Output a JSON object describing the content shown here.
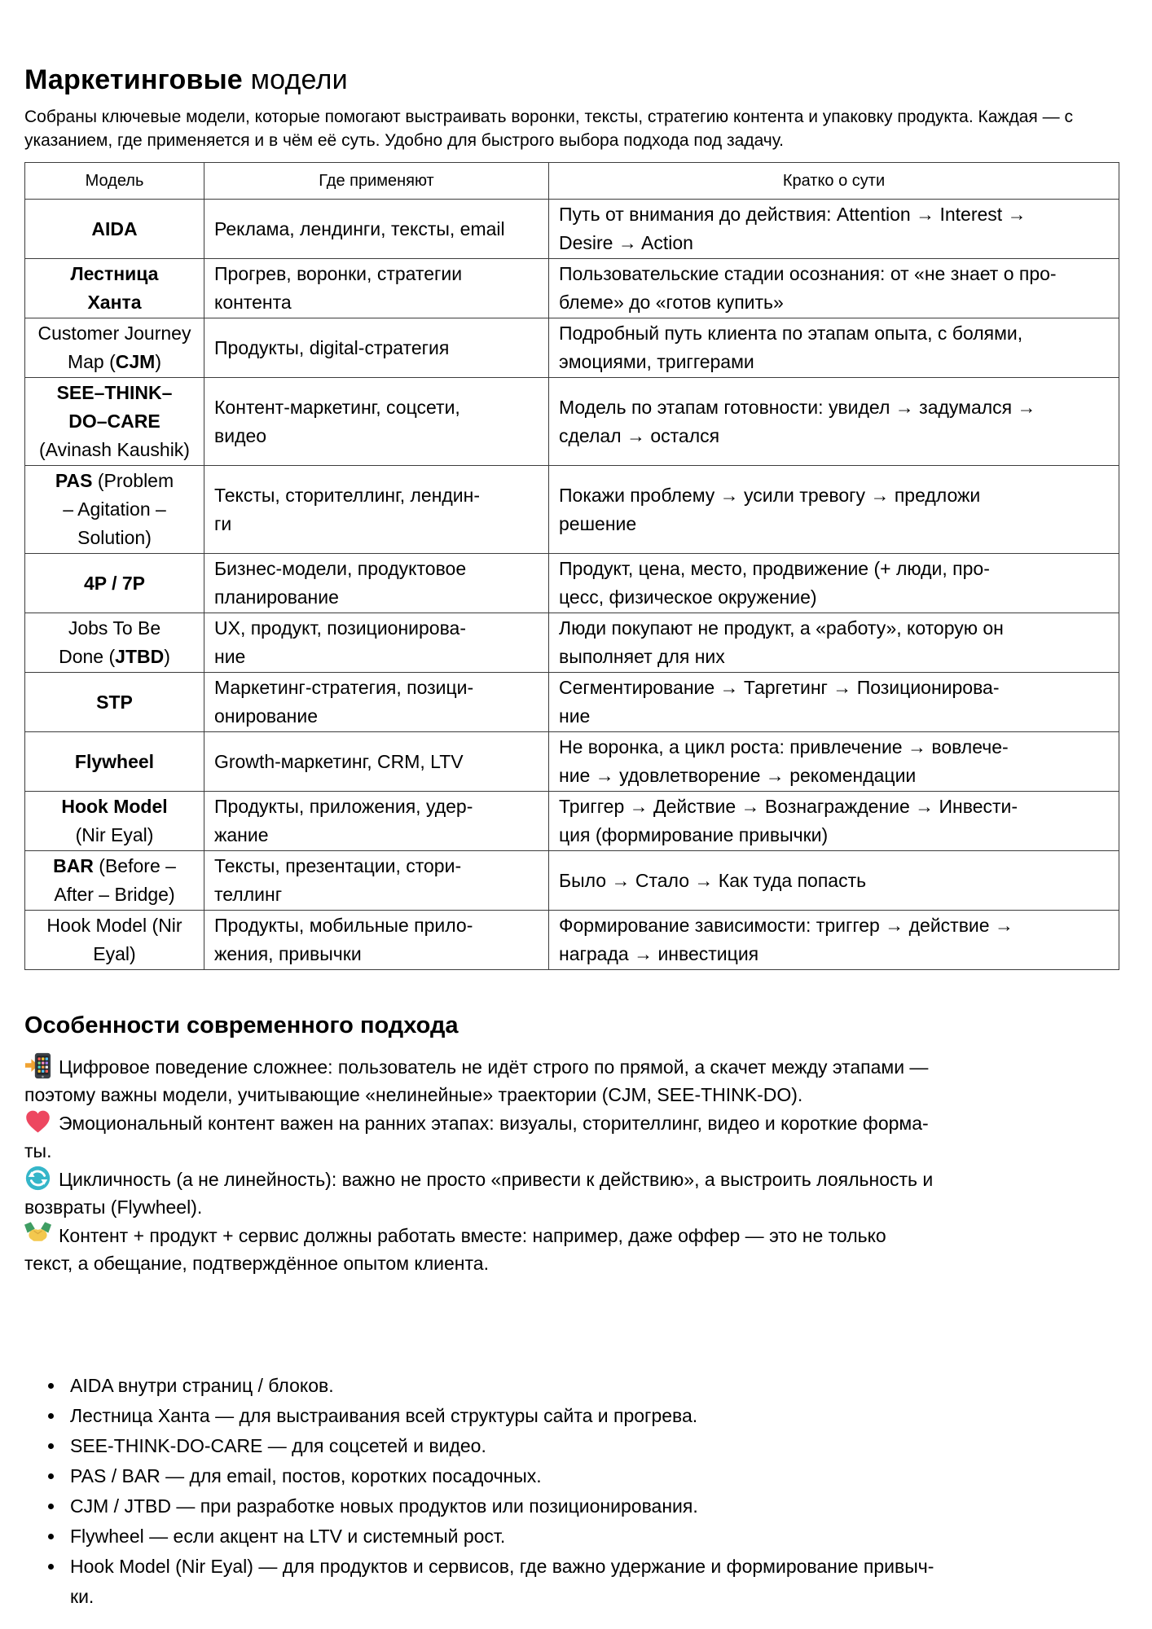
{
  "header": {
    "title_bold": "Маркетинговые",
    "title_regular": " модели",
    "intro": "Собраны ключевые модели, которые помогают выстраивать воронки, тексты, стратегию контента и упаковку продукта. Каждая — с\nуказанием, где применяется и в чём её суть. Удобно для быстрого выбора подхода под задачу."
  },
  "table": {
    "columns": [
      "Модель",
      "Где применяют",
      "Кратко о сути"
    ],
    "rows": [
      {
        "model": [
          {
            "t": "AIDA",
            "b": true
          }
        ],
        "where": "Реклама, лендинги, тексты, email",
        "essence": "Путь от внимания до действия: Attention → Interest →\nDesire → Action"
      },
      {
        "model": [
          {
            "t": "Лестница\nХанта",
            "b": true
          }
        ],
        "where": "Прогрев, воронки, стратегии\nконтента",
        "essence": "Пользовательские стадии осознания: от «не знает о про-\nблеме» до «готов купить»"
      },
      {
        "model": [
          {
            "t": "Customer Journey\nMap (",
            "b": false
          },
          {
            "t": "CJM",
            "b": true
          },
          {
            "t": ")",
            "b": false
          }
        ],
        "where": "Продукты, digital-стратегия",
        "essence": "Подробный путь клиента по этапам опыта, с болями,\nэмоциями, триггерами"
      },
      {
        "model": [
          {
            "t": "SEE–THINK–\nDO–CARE",
            "b": true
          },
          {
            "t": "\n(Avinash Kaushik)",
            "b": false
          }
        ],
        "where": "Контент-маркетинг, соцсети,\nвидео",
        "essence": "Модель по этапам готовности: увидел → задумался →\nсделал → остался"
      },
      {
        "model": [
          {
            "t": "PAS",
            "b": true
          },
          {
            "t": " (Problem\n– Agitation –\nSolution)",
            "b": false
          }
        ],
        "where": "Тексты, сторителлинг, лендин-\nги",
        "essence": "Покажи проблему → усили тревогу → предложи\nрешение"
      },
      {
        "model": [
          {
            "t": "4P / 7P",
            "b": true
          }
        ],
        "where": "Бизнес-модели, продуктовое\nпланирование",
        "essence": "Продукт, цена, место, продвижение (+ люди, про-\nцесс, физическое окружение)"
      },
      {
        "model": [
          {
            "t": "Jobs To Be\nDone (",
            "b": false
          },
          {
            "t": "JTBD",
            "b": true
          },
          {
            "t": ")",
            "b": false
          }
        ],
        "where": "UX, продукт, позиционирова-\nние",
        "essence": "Люди покупают не продукт, а «работу», которую он\nвыполняет для них"
      },
      {
        "model": [
          {
            "t": "STP",
            "b": true
          }
        ],
        "where": "Маркетинг-стратегия, позици-\nонирование",
        "essence": "Сегментирование → Таргетинг → Позиционирова-\nние"
      },
      {
        "model": [
          {
            "t": "Flywheel",
            "b": true
          }
        ],
        "where": "Growth-маркетинг, CRM, LTV",
        "essence": "Не воронка, а цикл роста: привлечение → вовлече-\nние → удовлетворение → рекомендации"
      },
      {
        "model": [
          {
            "t": "Hook Model",
            "b": true
          },
          {
            "t": "\n(Nir Eyal)",
            "b": false
          }
        ],
        "where": "Продукты, приложения, удер-\nжание",
        "essence": "Триггер → Действие → Вознаграждение → Инвести-\nция (формирование привычки)"
      },
      {
        "model": [
          {
            "t": "BAR",
            "b": true
          },
          {
            "t": " (Before –\nAfter – Bridge)",
            "b": false
          }
        ],
        "where": "Тексты, презентации, стори-\nтеллинг",
        "essence": "Было → Стало → Как туда попасть"
      },
      {
        "model": [
          {
            "t": "Hook Model (Nir\nEyal)",
            "b": false
          }
        ],
        "where": "Продукты, мобильные прило-\nжения, привычки",
        "essence": "Формирование зависимости: триггер → действие →\nнаграда → инвестиция"
      }
    ]
  },
  "features": {
    "heading": "Особенности современного подхода",
    "items": [
      {
        "icon": "phone-arrow",
        "text": "Цифровое поведение сложнее: пользователь не идёт строго по прямой, а скачет между этапами —\nпоэтому важны модели, учитывающие «нелинейные» траектории (CJM, SEE-THINK-DO)."
      },
      {
        "icon": "heart",
        "text": "Эмоциональный контент важен на ранних этапах: визуалы, сторителлинг, видео и короткие форма-\nты."
      },
      {
        "icon": "cycle",
        "text": "Цикличность (а не линейность): важно не просто «привести к действию», а выстроить лояльность и\nвозвраты (Flywheel)."
      },
      {
        "icon": "handshake",
        "text": "Контент + продукт + сервис должны работать вместе: например, даже оффер — это не только\nтекст, а обещание, подтверждённое опытом клиента."
      }
    ]
  },
  "usage_list": [
    "AIDA внутри страниц / блоков.",
    "Лестница Ханта — для выстраивания всей структуры сайта и прогрева.",
    "SEE-THINK-DO-CARE — для соцсетей и видео.",
    "PAS / BAR — для email, постов, коротких посадочных.",
    "CJM / JTBD — при разработке новых продуктов или позиционирования.",
    "Flywheel — если акцент на LTV и системный рост.",
    "Hook Model (Nir Eyal) — для продуктов и сервисов, где важно удержание и формирование привыч-\nки."
  ],
  "colors": {
    "text": "#000000",
    "table_border": "#3c3c3c",
    "phone_arrow": "#f0a332",
    "phone_body": "#3b4046",
    "heart": "#ed4760",
    "cycle": "#35b6c9",
    "handshake_hands": "#f3c84e",
    "handshake_sleeves": "#3f9d63"
  }
}
